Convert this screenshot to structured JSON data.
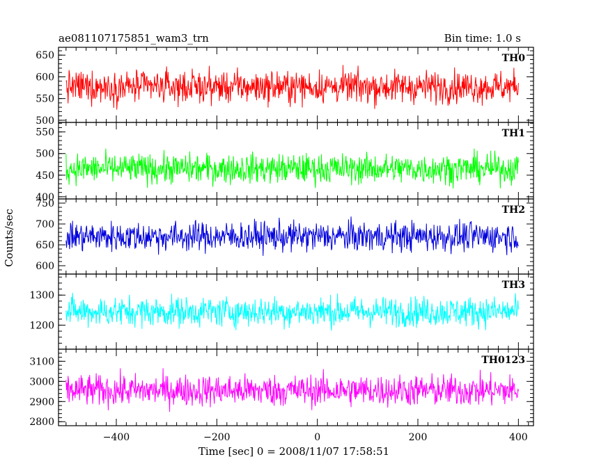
{
  "header": {
    "title": "ae081107175851_wam3_trn",
    "bin_time": "Bin time: 1.0 s"
  },
  "chart_data": {
    "type": "line",
    "title": "ae081107175851_wam3_trn",
    "subtitle": "Bin time: 1.0 s",
    "xlabel": "Time [sec] 0 = 2008/11/07 17:58:51",
    "ylabel": "Counts/sec",
    "xlim": [
      -515,
      430
    ],
    "data_x_range": [
      -500,
      400
    ],
    "x_ticks": [
      -400,
      -200,
      0,
      200,
      400
    ],
    "x_tick_labels": [
      "−400",
      "−200",
      "0",
      "200",
      "400"
    ],
    "grid": false,
    "legend": "none",
    "panels": [
      {
        "name": "TH0",
        "color": "#ff0000",
        "ylim": [
          495,
          668
        ],
        "ticks": [
          500,
          550,
          600,
          650
        ],
        "tick_labels": [
          "500",
          "550",
          "600",
          "650"
        ],
        "mean": 577,
        "spread": 26
      },
      {
        "name": "TH1",
        "color": "#00ff00",
        "ylim": [
          395,
          572
        ],
        "ticks": [
          400,
          450,
          500,
          550
        ],
        "tick_labels": [
          "400",
          "450",
          "500",
          "550"
        ],
        "mean": 465,
        "spread": 24
      },
      {
        "name": "TH2",
        "color": "#0000dd",
        "ylim": [
          580,
          760
        ],
        "ticks": [
          600,
          650,
          700,
          750
        ],
        "tick_labels": [
          "600",
          "650",
          "700",
          "750"
        ],
        "mean": 670,
        "spread": 25
      },
      {
        "name": "TH3",
        "color": "#00ffff",
        "ylim": [
          1120,
          1370
        ],
        "ticks": [
          1200,
          1300
        ],
        "tick_labels": [
          "1200",
          "1300"
        ],
        "mean": 1245,
        "spread": 35
      },
      {
        "name": "TH0123",
        "color": "#ff00ff",
        "ylim": [
          2780,
          3160
        ],
        "ticks": [
          2800,
          2900,
          3000,
          3100
        ],
        "tick_labels": [
          "2800",
          "2900",
          "3000",
          "3100"
        ],
        "mean": 2955,
        "spread": 55
      }
    ]
  }
}
